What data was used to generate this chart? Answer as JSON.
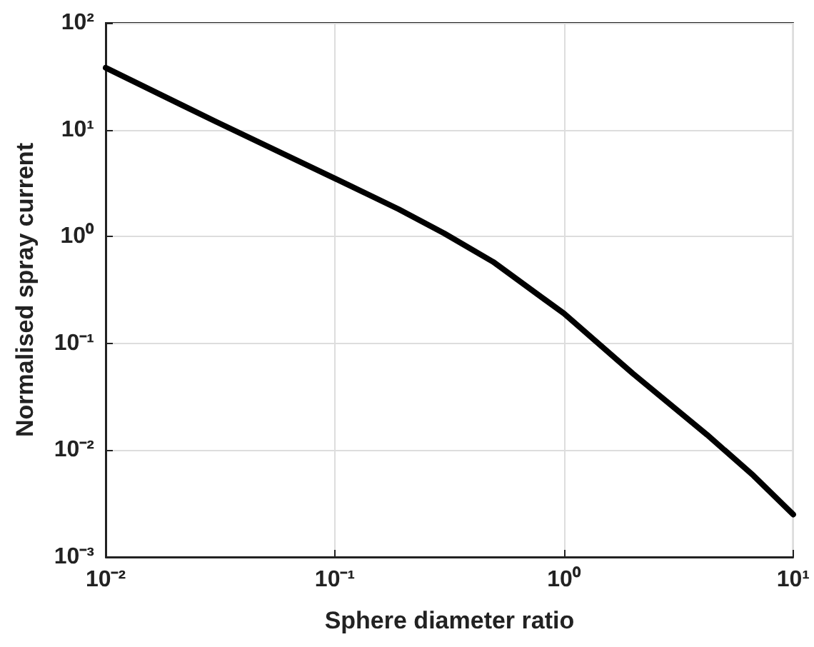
{
  "chart_data": {
    "type": "line",
    "xlabel": "Sphere diameter ratio",
    "ylabel": "Normalised spray current",
    "x": [
      0.01,
      0.03,
      0.1,
      0.19,
      0.3,
      0.49,
      1,
      2,
      4.2,
      6.7,
      10
    ],
    "series": [
      {
        "color": "#000000",
        "values": [
          38,
          12,
          3.5,
          1.8,
          1.07,
          0.58,
          0.19,
          0.052,
          0.014,
          0.0058,
          0.0025
        ]
      }
    ],
    "log": "xy",
    "xlim": [
      0.01,
      10
    ],
    "ylim": [
      0.001,
      100
    ],
    "xticks": [
      {
        "value": 0.01,
        "label": "10⁻²"
      },
      {
        "value": 0.1,
        "label": "10⁻¹"
      },
      {
        "value": 1,
        "label": "10⁰"
      },
      {
        "value": 10,
        "label": "10¹"
      }
    ],
    "yticks": [
      {
        "value": 0.001,
        "label": "10⁻³"
      },
      {
        "value": 0.01,
        "label": "10⁻²"
      },
      {
        "value": 0.1,
        "label": "10⁻¹"
      },
      {
        "value": 1,
        "label": "10⁰"
      },
      {
        "value": 10,
        "label": "10¹"
      },
      {
        "value": 100,
        "label": "10²"
      }
    ],
    "grid": true,
    "marker": "none",
    "line_style": "solid"
  }
}
